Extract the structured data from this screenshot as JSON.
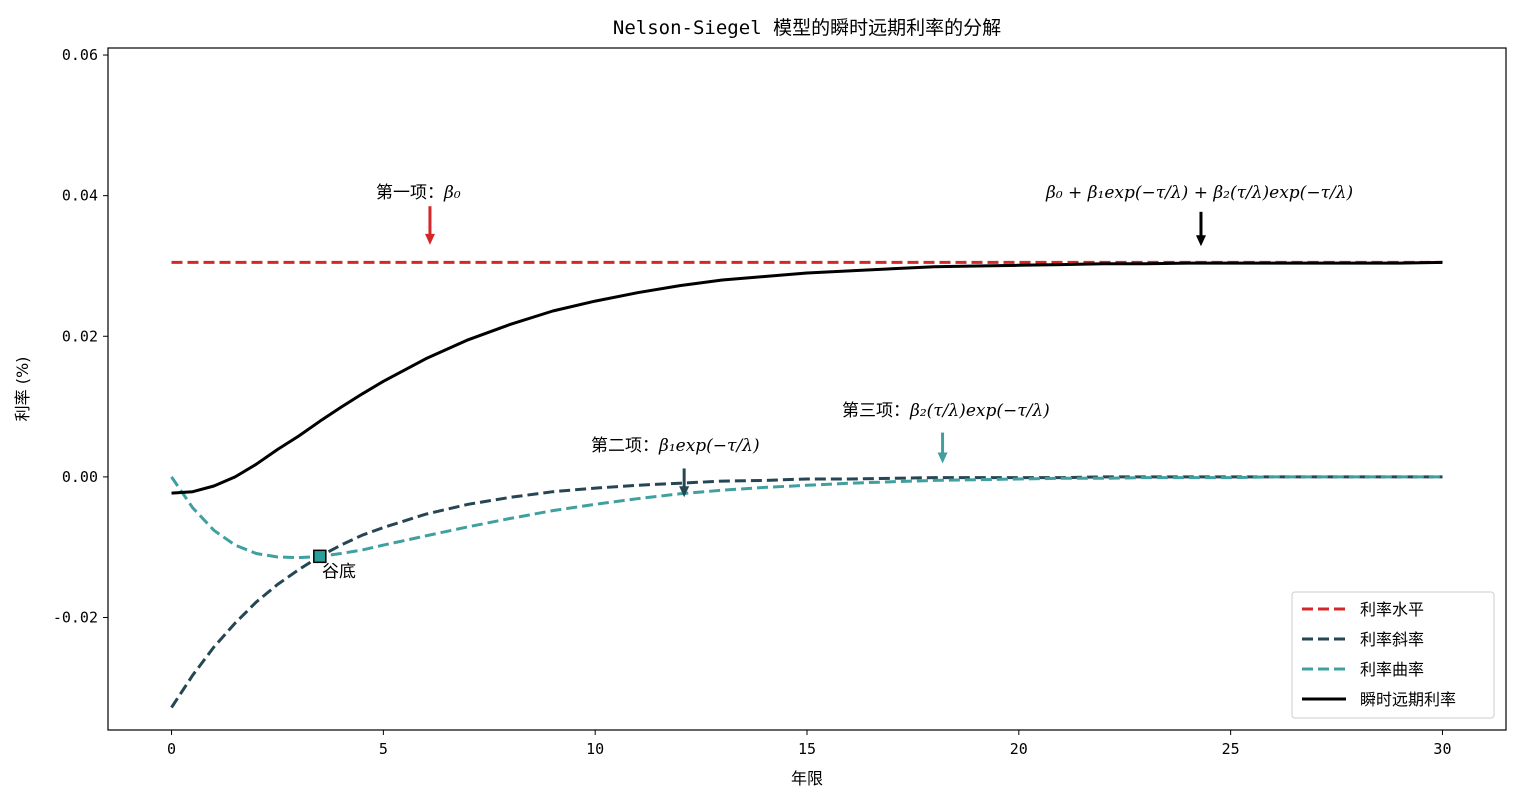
{
  "chart_data": {
    "type": "line",
    "title": "Nelson-Siegel 模型的瞬时远期利率的分解",
    "xlabel": "年限",
    "ylabel": "利率 (%)",
    "xlim": [
      -1.5,
      31.5
    ],
    "ylim": [
      -0.036,
      0.061
    ],
    "x_ticks": [
      0,
      5,
      10,
      15,
      20,
      25,
      30
    ],
    "x_tick_labels": [
      "0",
      "5",
      "10",
      "15",
      "20",
      "25",
      "30"
    ],
    "y_ticks": [
      -0.02,
      0.0,
      0.02,
      0.04,
      0.06
    ],
    "y_tick_labels": [
      "-0.02",
      "0.00",
      "0.02",
      "0.04",
      "0.06"
    ],
    "grid": false,
    "legend_position": "lower-right",
    "x": [
      0,
      0.5,
      1,
      1.5,
      2,
      2.5,
      3,
      3.5,
      4,
      4.5,
      5,
      6,
      7,
      8,
      9,
      10,
      11,
      12,
      13,
      14,
      15,
      16,
      17,
      18,
      19,
      20,
      21,
      22,
      23,
      24,
      25,
      26,
      27,
      28,
      29,
      30
    ],
    "series": [
      {
        "name": "利率水平",
        "color": "#d62728",
        "dash": true,
        "values": [
          0.0305,
          0.0305,
          0.0305,
          0.0305,
          0.0305,
          0.0305,
          0.0305,
          0.0305,
          0.0305,
          0.0305,
          0.0305,
          0.0305,
          0.0305,
          0.0305,
          0.0305,
          0.0305,
          0.0305,
          0.0305,
          0.0305,
          0.0305,
          0.0305,
          0.0305,
          0.0305,
          0.0305,
          0.0305,
          0.0305,
          0.0305,
          0.0305,
          0.0305,
          0.0305,
          0.0305,
          0.0305,
          0.0305,
          0.0305,
          0.0305,
          0.0305
        ]
      },
      {
        "name": "利率斜率",
        "color": "#264653",
        "dash": true,
        "values": [
          -0.0328,
          -0.0282,
          -0.0242,
          -0.0208,
          -0.0178,
          -0.0153,
          -0.0132,
          -0.0113,
          -0.0097,
          -0.0083,
          -0.0072,
          -0.0053,
          -0.0039,
          -0.0029,
          -0.0021,
          -0.0016,
          -0.0012,
          -0.0009,
          -0.0006,
          -0.0005,
          -0.0003,
          -0.0003,
          -0.0002,
          -0.0001,
          -0.0001,
          -0.0001,
          -0.0001,
          0.0,
          0.0,
          0.0,
          0.0,
          0.0,
          0.0,
          0.0,
          0.0,
          0.0
        ]
      },
      {
        "name": "利率曲率",
        "color": "#40a0a0",
        "dash": true,
        "values": [
          0.0,
          -0.0044,
          -0.0076,
          -0.0097,
          -0.0109,
          -0.0114,
          -0.0115,
          -0.0113,
          -0.0109,
          -0.0104,
          -0.0097,
          -0.0084,
          -0.0071,
          -0.0059,
          -0.0048,
          -0.0039,
          -0.0031,
          -0.0024,
          -0.0019,
          -0.0015,
          -0.0012,
          -0.0009,
          -0.0007,
          -0.0005,
          -0.0004,
          -0.0003,
          -0.0002,
          -0.0002,
          -0.0001,
          -0.0001,
          -0.0001,
          0.0,
          0.0,
          0.0,
          0.0,
          0.0
        ]
      },
      {
        "name": "瞬时远期利率",
        "color": "#000000",
        "dash": false,
        "values": [
          -0.0023,
          -0.0021,
          -0.0013,
          0.0,
          0.0018,
          0.0039,
          0.0058,
          0.0079,
          0.0099,
          0.0118,
          0.0136,
          0.0168,
          0.0195,
          0.0217,
          0.0236,
          0.025,
          0.0262,
          0.0272,
          0.028,
          0.0285,
          0.029,
          0.0293,
          0.0296,
          0.0299,
          0.03,
          0.0301,
          0.0302,
          0.0303,
          0.0303,
          0.0304,
          0.0304,
          0.0304,
          0.0304,
          0.0304,
          0.0304,
          0.0305
        ]
      }
    ],
    "annotations": [
      {
        "id": "a1",
        "label": "第一项：",
        "math": "β₀",
        "arrow_x": 6.1,
        "arrow_from_y": 0.0385,
        "arrow_to_y": 0.033,
        "color": "#d62728"
      },
      {
        "id": "a2",
        "label": "第二项：",
        "math": "β₁exp(−τ/λ)",
        "arrow_x": 12.1,
        "arrow_from_y": 0.0012,
        "arrow_to_y": -0.0029,
        "color": "#264653"
      },
      {
        "id": "a3",
        "label": "第三项：",
        "math": "β₂(τ/λ)exp(−τ/λ)",
        "arrow_x": 18.2,
        "arrow_from_y": 0.0063,
        "arrow_to_y": 0.0019,
        "color": "#40a0a0"
      },
      {
        "id": "a4",
        "label": "",
        "math": "β₀ + β₁exp(−τ/λ) + β₂(τ/λ)exp(−τ/λ)",
        "arrow_x": 24.3,
        "arrow_from_y": 0.0377,
        "arrow_to_y": 0.0328,
        "color": "#000000"
      }
    ],
    "trough": {
      "label": "谷底",
      "x": 3.5,
      "y": -0.0113
    }
  }
}
